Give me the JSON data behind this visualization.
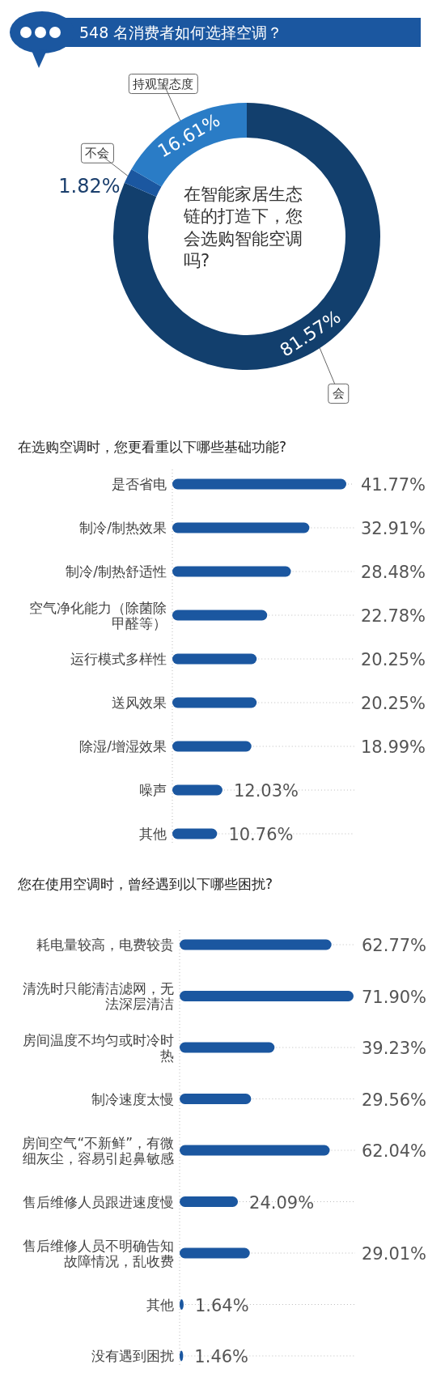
{
  "chart_data": [
    {
      "type": "donut",
      "title": "548 名消费者如何选择空调？",
      "categories": [
        "会",
        "不会",
        "持观望态度"
      ],
      "values": [
        81.57,
        1.82,
        16.61
      ],
      "colors": [
        "#123f6d",
        "#1b57a0",
        "#2a7cc6"
      ],
      "value_labels": [
        "81.57%",
        "1.82%",
        "16.61%"
      ],
      "legend": false,
      "annotations": [
        "在智能家居生态链的打造下，您会选购智能空调吗?"
      ]
    },
    {
      "type": "bar",
      "orientation": "horizontal",
      "title": "在选购空调时，您更看重以下哪些基础功能?",
      "categories": [
        "是否省电",
        "制冷/制热效果",
        "制冷/制热舒适性",
        "空气净化能力（除菌除甲醛等）",
        "运行模式多样性",
        "送风效果",
        "除湿/增湿效果",
        "噪声",
        "其他"
      ],
      "values": [
        41.77,
        32.91,
        28.48,
        22.78,
        20.25,
        20.25,
        18.99,
        12.03,
        10.76
      ],
      "color": "#1b57a0",
      "value_labels": [
        "41.77%",
        "32.91%",
        "28.48%",
        "22.78%",
        "20.25%",
        "20.25%",
        "18.99%",
        "12.03%",
        "10.76%"
      ]
    },
    {
      "type": "bar",
      "orientation": "horizontal",
      "title": "您在使用空调时，曾经遇到以下哪些困扰?",
      "categories": [
        "耗电量较高，电费较贵",
        "清洗时只能清洁滤网，无法深层清洁",
        "房间温度不均匀或时冷时热",
        "制冷速度太慢",
        "房间空气“不新鲜”，有微细灰尘，容易引起鼻敏感",
        "售后维修人员跟进速度慢",
        "售后维修人员不明确告知故障情况，乱收费",
        "其他",
        "没有遇到困扰"
      ],
      "values": [
        62.77,
        71.9,
        39.23,
        29.56,
        62.04,
        24.09,
        29.01,
        1.64,
        1.46
      ],
      "color": "#1b57a0",
      "value_labels": [
        "62.77%",
        "71.90%",
        "39.23%",
        "29.56%",
        "62.04%",
        "24.09%",
        "29.01%",
        "1.64%",
        "1.46%"
      ]
    }
  ]
}
